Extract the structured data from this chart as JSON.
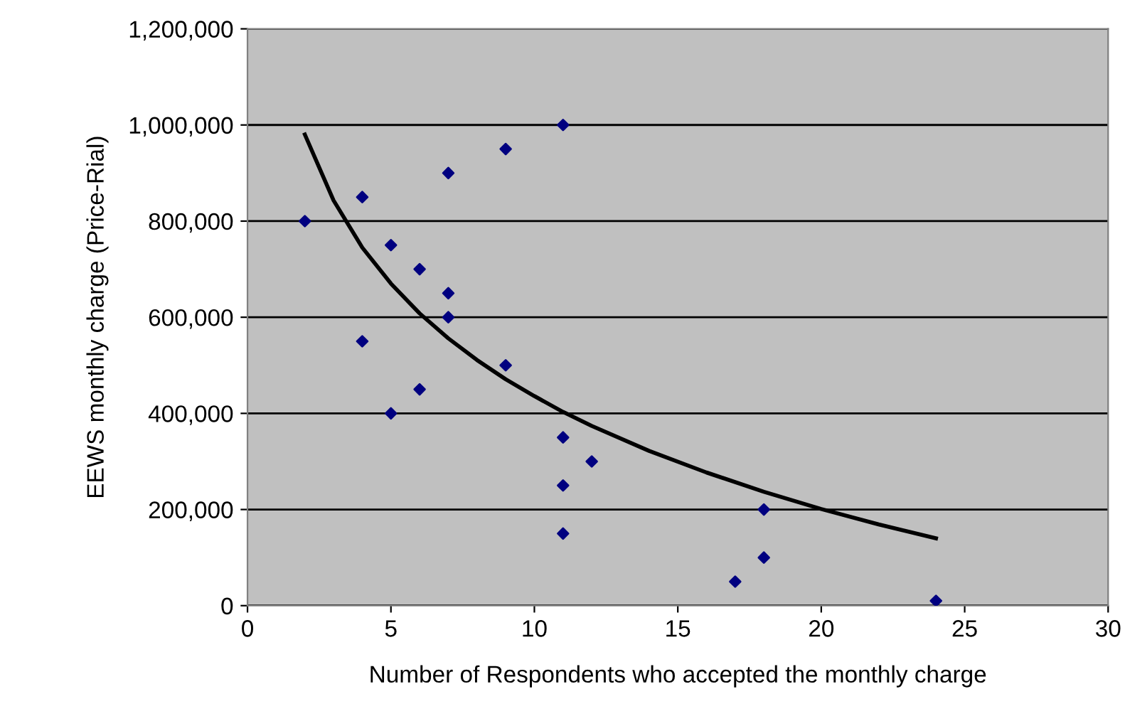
{
  "chart_data": {
    "type": "scatter",
    "xlabel": "Number of Respondents who accepted the monthly charge",
    "ylabel": "EEWS monthly charge (Price-Rial)",
    "xlim": [
      0,
      30
    ],
    "xticks": [
      0,
      5,
      10,
      15,
      20,
      25,
      30
    ],
    "ylim": [
      0,
      1200000
    ],
    "yticks": [
      {
        "value": 0,
        "label": "0"
      },
      {
        "value": 200000,
        "label": "200,000"
      },
      {
        "value": 400000,
        "label": "400,000"
      },
      {
        "value": 600000,
        "label": "600,000"
      },
      {
        "value": 800000,
        "label": "800,000"
      },
      {
        "value": 1000000,
        "label": "1,000,000"
      },
      {
        "value": 1200000,
        "label": "1,200,000"
      }
    ],
    "grid": "y",
    "legend": false,
    "series": [
      {
        "color": "#000080",
        "marker": "diamond",
        "x": [
          2,
          4,
          4,
          5,
          5,
          6,
          6,
          7,
          7,
          7,
          9,
          9,
          11,
          11,
          11,
          11,
          12,
          17,
          18,
          18,
          24
        ],
        "values": [
          800000,
          850000,
          550000,
          750000,
          400000,
          700000,
          450000,
          900000,
          650000,
          600000,
          950000,
          500000,
          1000000,
          350000,
          250000,
          150000,
          300000,
          50000,
          200000,
          100000,
          10000
        ]
      },
      {
        "type": "line",
        "color": "#000000",
        "marker": "none",
        "line_style": "solid",
        "x": [
          2,
          3,
          4,
          5,
          6,
          7,
          8,
          9,
          10,
          11,
          12,
          14,
          16,
          18,
          20,
          22,
          24
        ],
        "values": [
          980000,
          843000,
          745000,
          670000,
          608000,
          556000,
          511000,
          471000,
          436000,
          403000,
          374000,
          322000,
          277000,
          237000,
          201000,
          169000,
          140000
        ]
      }
    ]
  }
}
